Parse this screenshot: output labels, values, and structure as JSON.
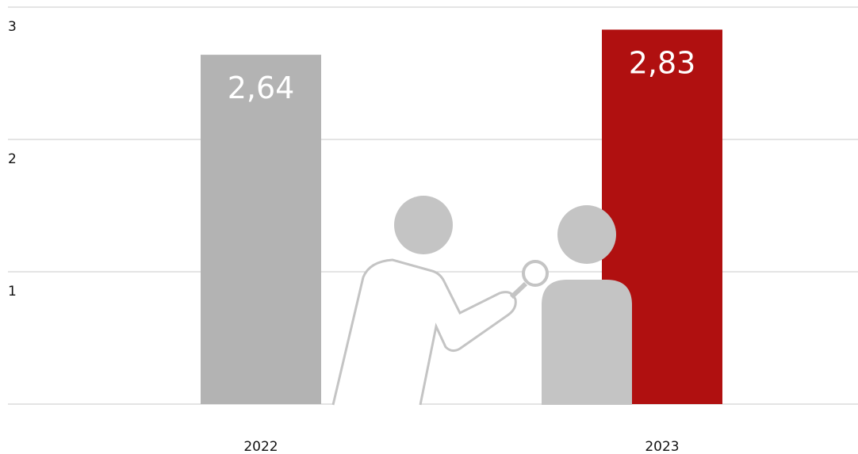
{
  "chart_data": {
    "type": "bar",
    "categories": [
      "2022",
      "2023"
    ],
    "values": [
      2.64,
      2.83
    ],
    "value_labels": [
      "2,64",
      "2,83"
    ],
    "colors": [
      "#b3b3b3",
      "#b01010"
    ],
    "ylim": [
      0,
      3
    ],
    "yticks": [
      1,
      2,
      3
    ],
    "grid": true
  }
}
